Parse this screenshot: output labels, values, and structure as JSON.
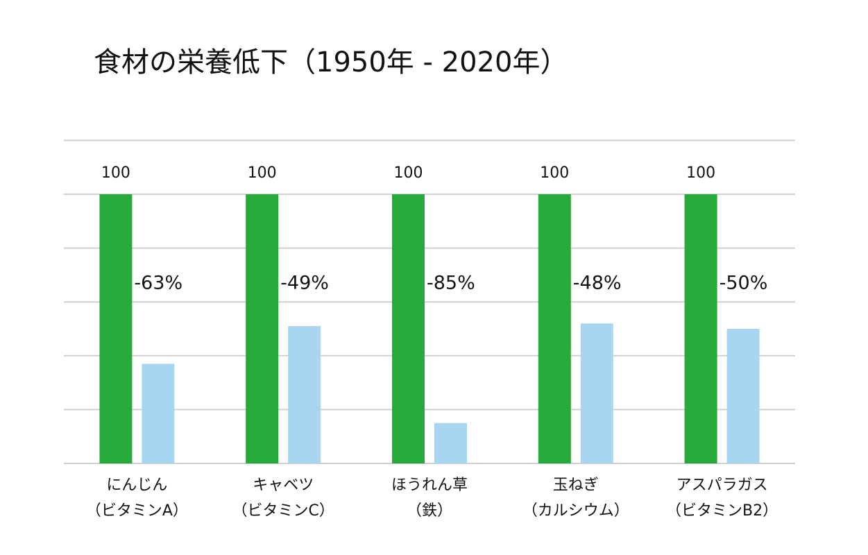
{
  "chart_data": {
    "type": "bar",
    "title": "食材の栄養低下（1950年 - 2020年）",
    "categories": [
      [
        "にんじん",
        "（ビタミンA）"
      ],
      [
        "キャベツ",
        "（ビタミンC）"
      ],
      [
        "ほうれん草",
        "（鉄）"
      ],
      [
        "玉ねぎ",
        "（カルシウム）"
      ],
      [
        "アスパラガス",
        "（ビタミンB2）"
      ]
    ],
    "series": [
      {
        "color": "#27aa3b",
        "values": [
          100,
          100,
          100,
          100,
          100
        ]
      },
      {
        "color": "#a8d6f1",
        "values": [
          37,
          51,
          15,
          52,
          50
        ]
      }
    ],
    "annotations": [
      "-63%",
      "-49%",
      "-85%",
      "-48%",
      "-50%"
    ],
    "ylim": [
      0,
      120
    ],
    "yticks": [
      0,
      20,
      40,
      60,
      80,
      100,
      120
    ],
    "grid": true
  }
}
